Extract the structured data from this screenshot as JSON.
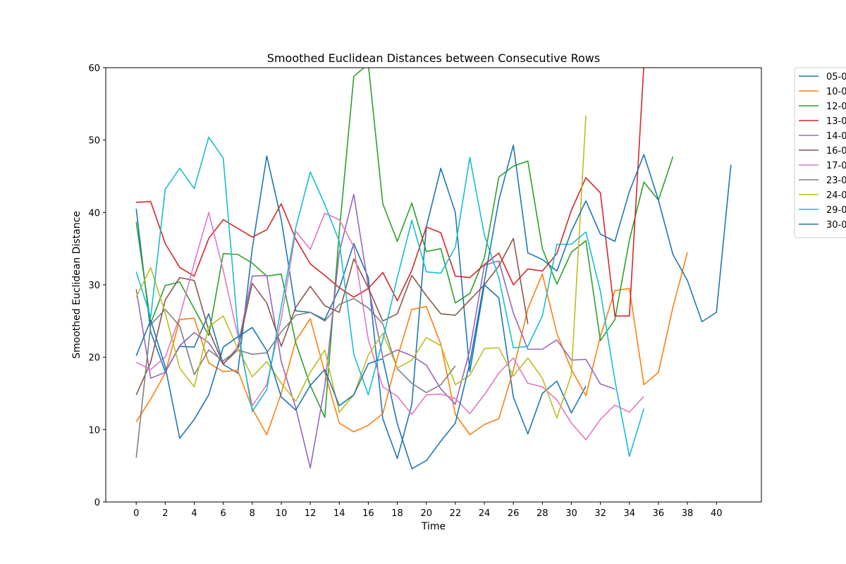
{
  "chart_data": {
    "type": "line",
    "title": "Smoothed Euclidean Distances between Consecutive Rows",
    "xlabel": "Time",
    "ylabel": "Smoothed Euclidean Distance",
    "xlim": [
      -2.1,
      43.1
    ],
    "ylim": [
      0,
      60
    ],
    "xticks": [
      0,
      2,
      4,
      6,
      8,
      10,
      12,
      14,
      16,
      18,
      20,
      22,
      24,
      26,
      28,
      30,
      32,
      34,
      36,
      38,
      40
    ],
    "yticks": [
      0,
      10,
      20,
      30,
      40,
      50,
      60
    ],
    "grid": false,
    "legend_position": "upper right, outside plot area (clipped)",
    "series": [
      {
        "name": "05-0",
        "color": "#1f77b4",
        "values": [
          40.5,
          23.5,
          18.0,
          21.5,
          21.4,
          26.0,
          19.0,
          17.8,
          35.0,
          47.8,
          39.0,
          26.4,
          26.2,
          25.2,
          29.5,
          35.7,
          31.0,
          11.5,
          6.0,
          13.5,
          38.0,
          46.1,
          40.0,
          18.0,
          30.0,
          28.2,
          14.5,
          9.4,
          15.0,
          16.7,
          12.3,
          16.0
        ]
      },
      {
        "name": "10-0",
        "color": "#ff7f0e",
        "values": [
          11.1,
          14.2,
          17.8,
          25.2,
          25.4,
          19.2,
          18.0,
          18.2,
          12.9,
          9.3,
          15.0,
          22.3,
          25.3,
          17.9,
          10.9,
          9.7,
          10.6,
          12.2,
          19.9,
          26.6,
          27.0,
          21.8,
          12.1,
          9.3,
          10.7,
          11.5,
          18.2,
          26.7,
          31.5,
          23.3,
          18.3,
          14.7,
          22.9,
          29.2,
          29.5,
          16.2,
          17.9,
          26.9,
          34.5
        ]
      },
      {
        "name": "12-0",
        "color": "#2ca02c",
        "values": [
          38.7,
          24.7,
          29.9,
          30.4,
          26.7,
          23.0,
          34.3,
          34.2,
          33.0,
          31.2,
          31.5,
          22.0,
          16.1,
          11.7,
          37.3,
          58.8,
          60.5,
          41.2,
          36.0,
          41.3,
          34.6,
          35.0,
          27.5,
          28.8,
          33.7,
          44.9,
          46.4,
          47.1,
          35.0,
          30.1,
          34.5,
          36.1,
          22.3,
          25.2,
          36.2,
          44.2,
          41.7,
          47.7
        ]
      },
      {
        "name": "13-0",
        "color": "#d62728",
        "values": [
          41.4,
          41.5,
          35.7,
          32.4,
          31.2,
          36.4,
          39.0,
          37.8,
          36.6,
          37.6,
          41.2,
          36.3,
          32.9,
          31.3,
          29.6,
          28.3,
          29.5,
          31.7,
          27.8,
          32.0,
          38.0,
          37.2,
          31.2,
          31.0,
          32.8,
          34.4,
          30.0,
          32.2,
          31.9,
          34.3,
          40.3,
          44.8,
          42.7,
          25.7,
          25.7,
          60.5
        ]
      },
      {
        "name": "14-0",
        "color": "#9467bd",
        "values": [
          29.4,
          17.1,
          17.9,
          21.6,
          23.4,
          22.0,
          19.0,
          21.4,
          31.2,
          31.3,
          19.4,
          13.0,
          4.7,
          16.0,
          34.5,
          42.5,
          29.8,
          20.0,
          21.0,
          20.2,
          18.9,
          15.6,
          13.5,
          21.0,
          32.7,
          33.3,
          26.1,
          21.1,
          21.1,
          22.4,
          19.6,
          19.7,
          16.3,
          15.6
        ]
      },
      {
        "name": "16-0",
        "color": "#8c564b",
        "values": [
          14.8,
          19.3,
          27.9,
          31.0,
          30.6,
          23.7,
          19.1,
          21.0,
          30.2,
          27.5,
          21.5,
          26.9,
          29.8,
          27.1,
          26.2,
          33.6,
          29.6,
          25.0,
          26.0,
          31.3,
          28.5,
          26.0,
          25.8,
          27.9,
          30.0,
          32.6,
          36.4,
          24.6
        ]
      },
      {
        "name": "17-0",
        "color": "#e377c2",
        "values": [
          19.3,
          18.3,
          20.0,
          25.6,
          33.0,
          40.0,
          32.0,
          23.0,
          13.3,
          16.2,
          25.3,
          37.4,
          34.9,
          39.9,
          39.0,
          35.3,
          22.4,
          15.9,
          14.6,
          12.1,
          14.8,
          14.9,
          14.3,
          12.2,
          14.8,
          17.8,
          19.9,
          16.4,
          15.9,
          14.1,
          10.9,
          8.6,
          11.4,
          13.4,
          12.4,
          14.6
        ]
      },
      {
        "name": "23-0",
        "color": "#7f7f7f",
        "values": [
          6.1,
          24.5,
          26.6,
          24.3,
          17.6,
          21.0,
          19.5,
          21.0,
          20.4,
          20.6,
          23.5,
          25.8,
          26.2,
          25.0,
          27.3,
          28.1,
          26.8,
          24.6,
          18.4,
          16.4,
          15.1,
          16.2,
          18.8
        ]
      },
      {
        "name": "24-0",
        "color": "#bcbd22",
        "values": [
          28.3,
          32.4,
          26.1,
          18.5,
          15.9,
          24.2,
          25.7,
          21.2,
          17.3,
          19.4,
          16.4,
          13.9,
          17.9,
          21.0,
          12.4,
          14.8,
          20.3,
          23.3,
          18.5,
          19.6,
          22.7,
          21.6,
          16.2,
          17.5,
          21.2,
          21.3,
          17.4,
          19.9,
          17.1,
          11.6,
          17.6,
          53.4
        ]
      },
      {
        "name": "29-0",
        "color": "#17becf",
        "values": [
          31.8,
          25.5,
          43.2,
          46.1,
          43.3,
          50.4,
          47.5,
          24.0,
          12.5,
          15.5,
          27.0,
          37.9,
          45.6,
          41.1,
          36.0,
          20.4,
          14.8,
          22.4,
          31.0,
          38.9,
          31.8,
          31.6,
          35.2,
          47.6,
          36.9,
          31.0,
          21.3,
          21.5,
          25.7,
          35.6,
          35.6,
          37.3,
          29.1,
          16.8,
          6.3,
          12.9
        ]
      },
      {
        "name": "30-0",
        "color": "#1f77b4",
        "values": [
          20.2,
          25.1,
          18.7,
          8.8,
          11.4,
          14.8,
          21.4,
          22.8,
          24.1,
          20.9,
          14.5,
          12.7,
          16.1,
          18.3,
          13.3,
          14.8,
          19.1,
          19.8,
          10.8,
          4.6,
          5.7,
          8.4,
          10.9,
          19.2,
          30.5,
          41.7,
          49.3,
          34.4,
          33.5,
          31.9,
          37.4,
          41.6,
          37.0,
          36.0,
          42.9,
          48.0,
          41.7,
          34.2,
          30.6,
          24.9,
          26.2,
          46.6
        ]
      }
    ]
  }
}
